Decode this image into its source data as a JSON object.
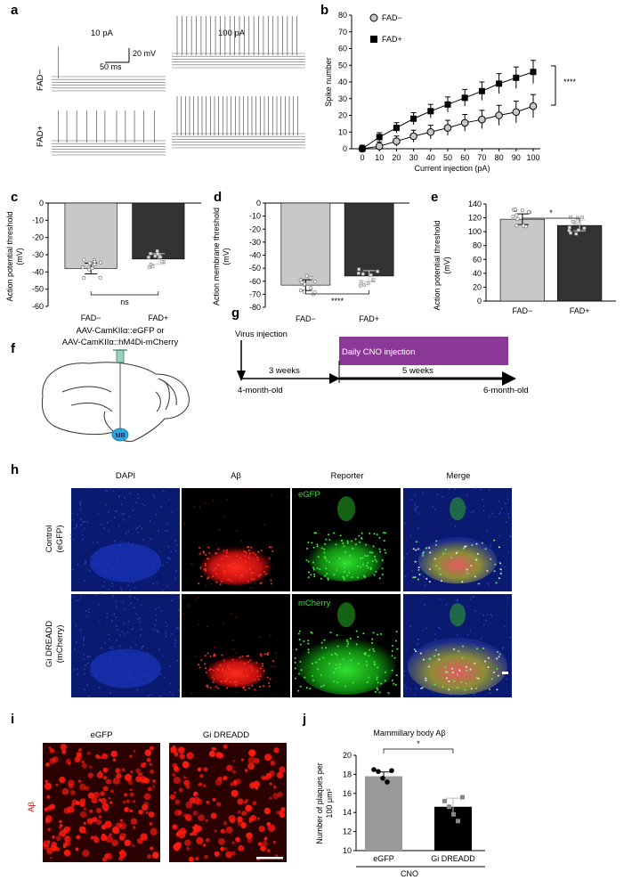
{
  "panels": {
    "a": "a",
    "b": "b",
    "c": "c",
    "d": "d",
    "e": "e",
    "f": "f",
    "g": "g",
    "h": "h",
    "i": "i",
    "j": "j"
  },
  "panel_a": {
    "col_10": "10 pA",
    "col_100": "100 pA",
    "row_neg": "FAD−",
    "row_pos": "FAD+",
    "scale_mv": "20 mV",
    "scale_ms": "50 ms"
  },
  "panel_b": {
    "ylabel": "Spike number",
    "xlabel": "Current injection (pA)",
    "legend": [
      "FAD−",
      "FAD+"
    ],
    "sig": "****",
    "x": [
      0,
      10,
      20,
      30,
      40,
      50,
      60,
      70,
      80,
      90,
      100
    ],
    "y_neg": [
      0,
      1.5,
      4.5,
      7.5,
      10,
      12.5,
      15.5,
      17.5,
      20,
      22,
      25.5
    ],
    "y_pos": [
      0,
      7,
      12.5,
      18,
      22.5,
      26.5,
      30.5,
      34.5,
      39,
      42.5,
      46
    ],
    "yticks": [
      0,
      10,
      20,
      30,
      40,
      50,
      60,
      70,
      80
    ],
    "xticks": [
      0,
      10,
      20,
      30,
      40,
      50,
      60,
      70,
      80,
      90,
      100
    ]
  },
  "panel_c": {
    "ylabel_1": "Action potential threshold",
    "ylabel_2": "(mV)",
    "yticks": [
      0,
      -10,
      -20,
      -30,
      -40,
      -50,
      -60
    ],
    "categories": [
      "FAD−",
      "FAD+"
    ],
    "values": [
      -38,
      -32.5
    ],
    "sig": "ns"
  },
  "panel_d": {
    "ylabel_1": "Action membrane threshold",
    "ylabel_2": "(mV)",
    "yticks": [
      0,
      -10,
      -20,
      -30,
      -40,
      -50,
      -60,
      -70,
      -80
    ],
    "categories": [
      "FAD−",
      "FAD+"
    ],
    "values": [
      -63,
      -56
    ],
    "sig": "****"
  },
  "panel_e": {
    "ylabel_1": "Action potential threshold",
    "ylabel_2": "(mV)",
    "yticks": [
      0,
      20,
      40,
      60,
      80,
      100,
      120,
      140
    ],
    "categories": [
      "FAD−",
      "FAD+"
    ],
    "values": [
      118,
      109
    ],
    "sig": "*"
  },
  "panel_f": {
    "line1": "AAV-CamKIIα::eGFP or",
    "line2": "AAV-CamKIIα::hM4Di-mCherry",
    "mb": "MB"
  },
  "panel_g": {
    "virus": "Virus injection",
    "cno": "Daily CNO injection",
    "weeks3": "3 weeks",
    "weeks5": "5 weeks",
    "start": "4-month-old",
    "end": "6-month-old"
  },
  "panel_h": {
    "cols": [
      "DAPI",
      "Aβ",
      "Reporter",
      "Merge"
    ],
    "row1_a": "Control",
    "row1_b": "(eGFP)",
    "row2_a": "Gi DREADD",
    "row2_b": "(mCherry)",
    "inset1": "eGFP",
    "inset2": "mCherry"
  },
  "panel_i": {
    "col1": "eGFP",
    "col2": "Gi DREADD",
    "rowlabel": "Aβ"
  },
  "panel_j": {
    "title": "Mammillary body Aβ",
    "ylabel_1": "Number of plaques per",
    "ylabel_2": "100 μm²",
    "yticks": [
      10,
      12,
      14,
      16,
      18,
      20
    ],
    "categories": [
      "eGFP",
      "Gi DREADD"
    ],
    "values": [
      17.8,
      14.6
    ],
    "sig": "*",
    "group": "CNO"
  },
  "colors": {
    "neg_bar": "#c8c8c8",
    "pos_bar": "#333333",
    "cno_bar": "#8a3a96",
    "dapi": "#1428a8",
    "abeta": "#e01010",
    "reporter": "#20c020"
  },
  "chart_data": [
    {
      "type": "line",
      "title": "",
      "xlabel": "Current injection (pA)",
      "ylabel": "Spike number",
      "x": [
        0,
        10,
        20,
        30,
        40,
        50,
        60,
        70,
        80,
        90,
        100
      ],
      "xlim": [
        0,
        100
      ],
      "ylim": [
        0,
        80
      ],
      "series": [
        {
          "name": "FAD−",
          "values": [
            0,
            1.5,
            4.5,
            7.5,
            10,
            12.5,
            15.5,
            17.5,
            20,
            22,
            25.5
          ]
        },
        {
          "name": "FAD+",
          "values": [
            0,
            7,
            12.5,
            18,
            22.5,
            26.5,
            30.5,
            34.5,
            39,
            42.5,
            46
          ]
        }
      ]
    },
    {
      "type": "bar",
      "categories": [
        "FAD−",
        "FAD+"
      ],
      "values": [
        -38,
        -32.5
      ],
      "ylabel": "Action potential threshold (mV)",
      "ylim": [
        -60,
        0
      ]
    },
    {
      "type": "bar",
      "categories": [
        "FAD−",
        "FAD+"
      ],
      "values": [
        -63,
        -56
      ],
      "ylabel": "Action membrane threshold (mV)",
      "ylim": [
        -80,
        0
      ]
    },
    {
      "type": "bar",
      "categories": [
        "FAD−",
        "FAD+"
      ],
      "values": [
        118,
        109
      ],
      "ylabel": "Action potential threshold (mV)",
      "ylim": [
        0,
        140
      ]
    },
    {
      "type": "bar",
      "title": "Mammillary body Aβ",
      "categories": [
        "eGFP",
        "Gi DREADD"
      ],
      "values": [
        17.8,
        14.6
      ],
      "ylabel": "Number of plaques per 100 μm²",
      "ylim": [
        10,
        20
      ]
    }
  ]
}
